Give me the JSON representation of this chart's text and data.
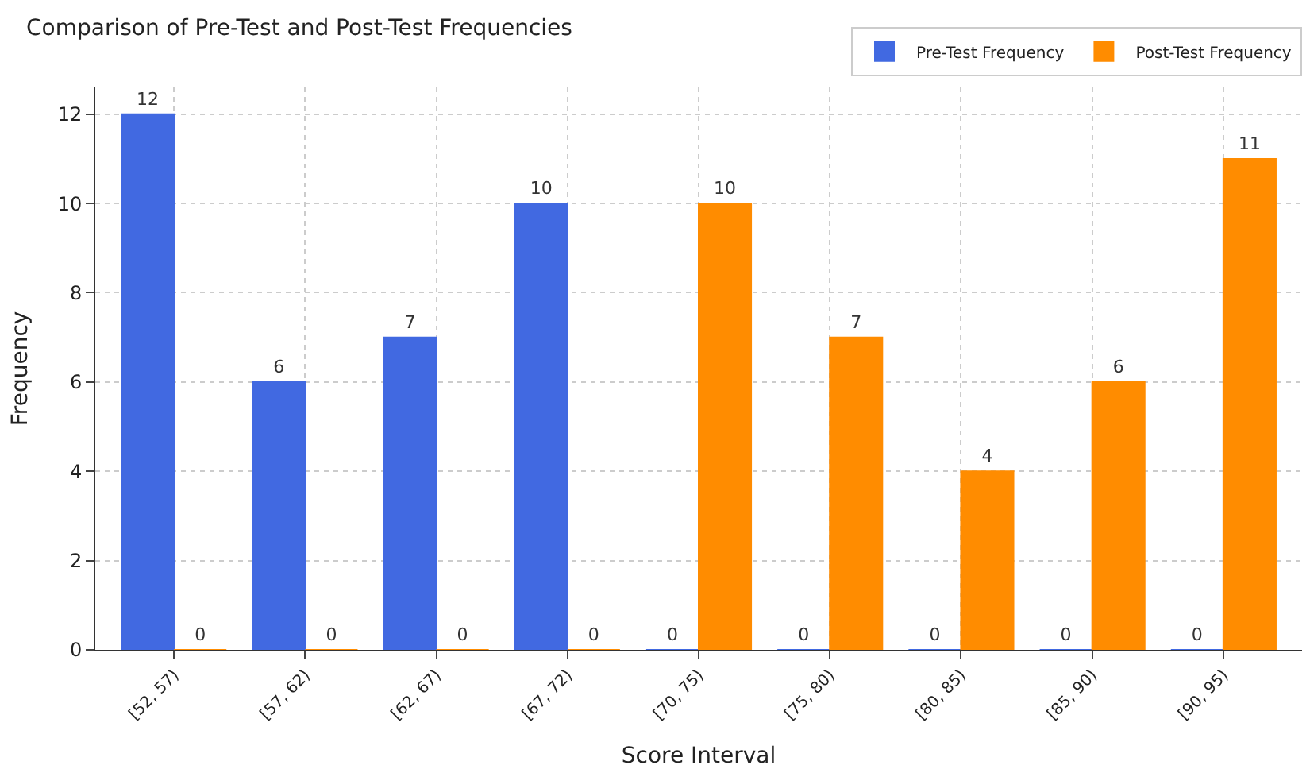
{
  "chart_data": {
    "type": "bar",
    "title": "Comparison of Pre-Test and Post-Test Frequencies",
    "xlabel": "Score Interval",
    "ylabel": "Frequency",
    "categories": [
      "[52, 57)",
      "[57, 62)",
      "[62, 67)",
      "[67, 72)",
      "[70, 75)",
      "[75, 80)",
      "[80, 85)",
      "[85, 90)",
      "[90, 95)"
    ],
    "series": [
      {
        "name": "Pre-Test Frequency",
        "color": "#4169e1",
        "values": [
          12,
          6,
          7,
          10,
          0,
          0,
          0,
          0,
          0
        ]
      },
      {
        "name": "Post-Test Frequency",
        "color": "#ff8c00",
        "values": [
          0,
          0,
          0,
          0,
          10,
          7,
          4,
          6,
          11
        ]
      }
    ],
    "ylim": [
      0,
      12.6
    ],
    "yticks": [
      0,
      2,
      4,
      6,
      8,
      10,
      12
    ],
    "grid": true,
    "legend": "top right",
    "data_labels": true
  }
}
